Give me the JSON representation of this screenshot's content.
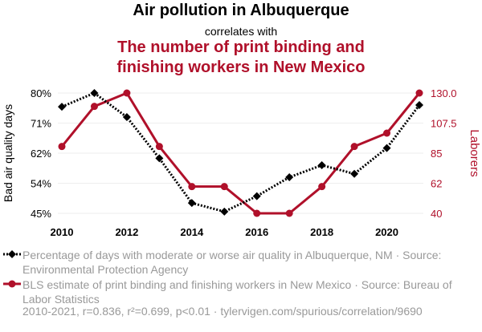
{
  "header": {
    "title": "Air pollution in Albuquerque",
    "subtitle": "correlates with",
    "title2_line1": "The number of print binding and",
    "title2_line2": "finishing workers in New Mexico"
  },
  "legend": {
    "series1": "Percentage of days with moderate or worse air quality in Albuquerque, NM · Source: Environmental Protection Agency",
    "series2": "BLS estimate of print binding and finishing workers in New Mexico · Source: Bureau of Labor Statistics"
  },
  "footer": "2010-2021, r=0.836, r²=0.699, p<0.01 · tylervigen.com/spurious/correlation/9690",
  "colors": {
    "series1": "#000000",
    "series2": "#b0102a",
    "grid": "#eeeeee"
  },
  "chart_data": {
    "type": "line",
    "x": [
      2010,
      2011,
      2012,
      2013,
      2014,
      2015,
      2016,
      2017,
      2018,
      2019,
      2020,
      2021
    ],
    "xticks": [
      "2010",
      "2012",
      "2014",
      "2016",
      "2018",
      "2020"
    ],
    "ylabel_left": "Bad air quality days",
    "ylabel_right": "Laborers",
    "yticks_left": [
      "80%",
      "71%",
      "62%",
      "54%",
      "45%"
    ],
    "yticks_right": [
      "130.0",
      "107.5",
      "85",
      "62",
      "40"
    ],
    "ylim_left": [
      45,
      80
    ],
    "ylim_right": [
      40,
      130
    ],
    "grid": "horizontal",
    "series": [
      {
        "axis": "left",
        "marker": "diamond",
        "line": "dotted",
        "values": [
          76,
          80,
          73,
          61,
          48,
          45.5,
          50,
          55.5,
          59,
          56.5,
          64,
          76.5
        ]
      },
      {
        "axis": "right",
        "marker": "circle",
        "line": "solid",
        "values": [
          90,
          120,
          130,
          90,
          60,
          60,
          40,
          40,
          60,
          90,
          100,
          130
        ]
      }
    ]
  }
}
